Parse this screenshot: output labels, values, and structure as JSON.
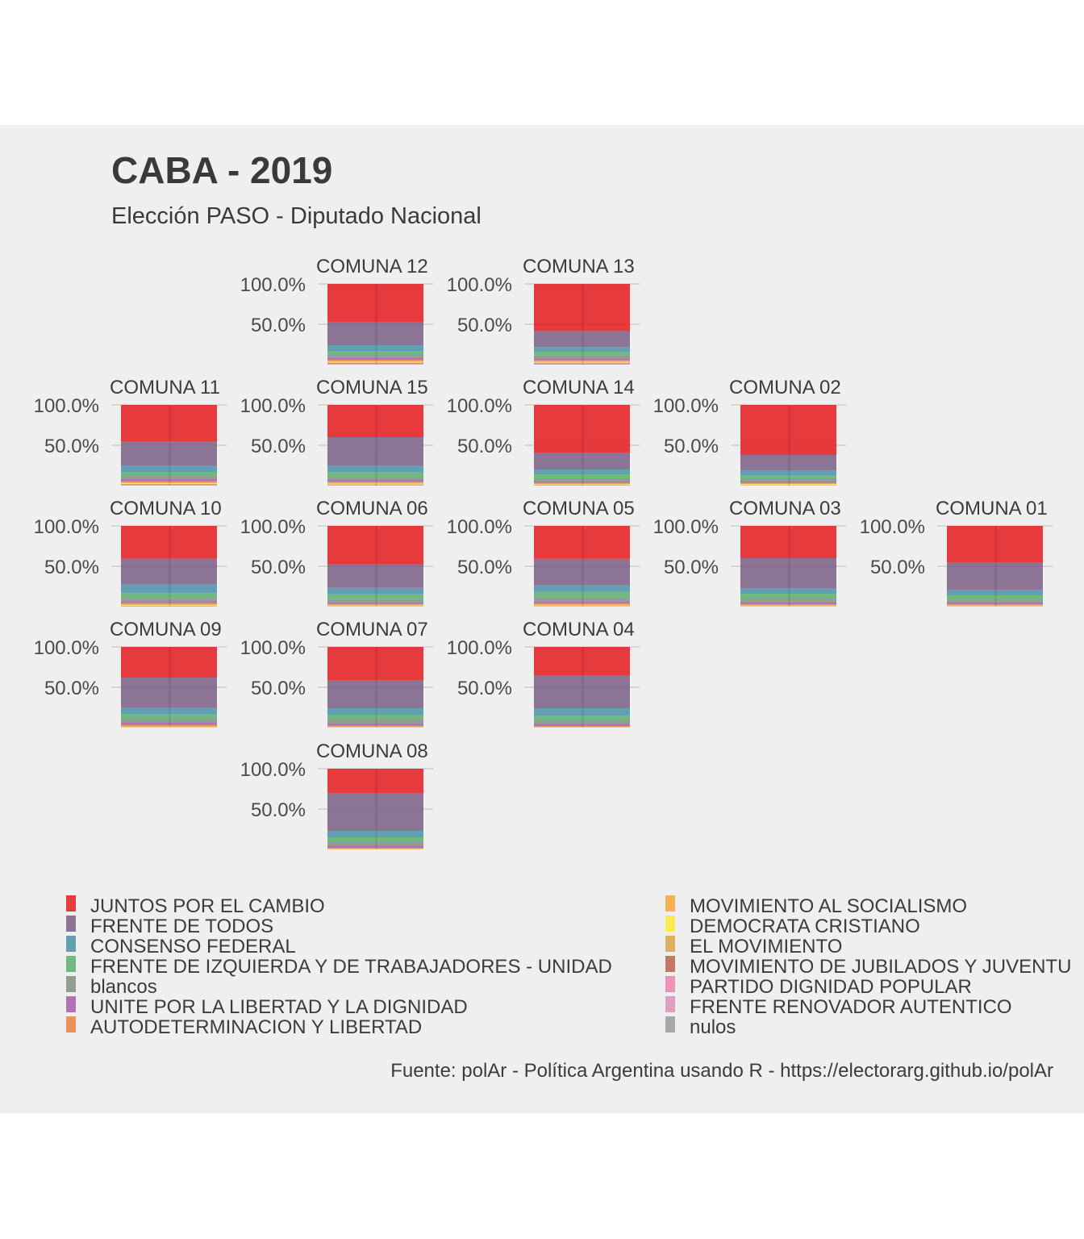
{
  "chart_data": {
    "type": "bar",
    "title": "CABA - 2019",
    "subtitle": "Elección PASO - Diputado Nacional",
    "caption": "Fuente: polAr - Política Argentina usando R - https://electorarg.github.io/polAr",
    "y_ticks": [
      "100.0%",
      "50.0%"
    ],
    "ylim": [
      0,
      1
    ],
    "categories": [
      "JUNTOS POR EL CAMBIO",
      "FRENTE DE TODOS",
      "CONSENSO FEDERAL",
      "FRENTE DE IZQUIERDA Y DE TRABAJADORES - UNIDAD",
      "blancos",
      "UNITE POR LA LIBERTAD Y LA DIGNIDAD",
      "AUTODETERMINACION Y LIBERTAD",
      "MOVIMIENTO AL SOCIALISMO",
      "DEMOCRATA CRISTIANO",
      "EL MOVIMIENTO",
      "MOVIMIENTO DE JUBILADOS Y JUVENTUD",
      "PARTIDO DIGNIDAD POPULAR",
      "FRENTE RENOVADOR AUTENTICO",
      "nulos"
    ],
    "colors": [
      "#e41a1c",
      "#7a5f84",
      "#4a90a8",
      "#59ae6d",
      "#7f8f86",
      "#a55dac",
      "#e8833f",
      "#f8a637",
      "#ffea3a",
      "#d9a744",
      "#b9644a",
      "#ea84ad",
      "#dc90b8",
      "#9a9a9a"
    ],
    "legend_labels": [
      "JUNTOS POR EL CAMBIO",
      "FRENTE DE TODOS",
      "CONSENSO FEDERAL",
      "FRENTE DE IZQUIERDA Y DE TRABAJADORES - UNIDAD",
      "blancos",
      "UNITE POR LA LIBERTAD Y LA DIGNIDAD",
      "AUTODETERMINACION Y LIBERTAD",
      "MOVIMIENTO AL SOCIALISMO",
      "DEMOCRATA CRISTIANO",
      "EL MOVIMIENTO",
      "MOVIMIENTO DE JUBILADOS Y JUVENTU",
      "PARTIDO DIGNIDAD POPULAR",
      "FRENTE RENOVADOR AUTENTICO",
      "nulos"
    ],
    "legend_position": "bottom",
    "grid": true,
    "panels": [
      {
        "name": "COMUNA 12",
        "label": "COMUNA 12",
        "row": 0,
        "col": 1,
        "values": [
          0.47,
          0.29,
          0.07,
          0.05,
          0.04,
          0.02,
          0.015,
          0.01,
          0.01,
          0.005,
          0.005,
          0.004,
          0.003,
          0.008
        ]
      },
      {
        "name": "COMUNA 13",
        "label": "COMUNA 13",
        "row": 0,
        "col": 2,
        "values": [
          0.59,
          0.2,
          0.06,
          0.045,
          0.04,
          0.02,
          0.012,
          0.01,
          0.008,
          0.004,
          0.004,
          0.003,
          0.002,
          0.012
        ]
      },
      {
        "name": "COMUNA 11",
        "label": "COMUNA 11",
        "row": 1,
        "col": 0,
        "values": [
          0.45,
          0.3,
          0.08,
          0.05,
          0.04,
          0.025,
          0.015,
          0.01,
          0.01,
          0.005,
          0.004,
          0.003,
          0.002,
          0.006
        ]
      },
      {
        "name": "COMUNA 15",
        "label": "COMUNA 15",
        "row": 1,
        "col": 1,
        "values": [
          0.4,
          0.35,
          0.08,
          0.06,
          0.04,
          0.02,
          0.015,
          0.01,
          0.008,
          0.005,
          0.004,
          0.003,
          0.002,
          0.003
        ]
      },
      {
        "name": "COMUNA 14",
        "label": "COMUNA 14",
        "row": 1,
        "col": 2,
        "values": [
          0.59,
          0.21,
          0.06,
          0.05,
          0.04,
          0.015,
          0.01,
          0.008,
          0.006,
          0.004,
          0.003,
          0.002,
          0.002,
          0.0
        ]
      },
      {
        "name": "COMUNA 02",
        "label": "COMUNA 02",
        "row": 1,
        "col": 3,
        "values": [
          0.62,
          0.19,
          0.06,
          0.04,
          0.04,
          0.015,
          0.01,
          0.006,
          0.012,
          0.003,
          0.002,
          0.002,
          0.0,
          0.0
        ]
      },
      {
        "name": "COMUNA 10",
        "label": "COMUNA 10",
        "row": 2,
        "col": 0,
        "values": [
          0.41,
          0.32,
          0.11,
          0.06,
          0.04,
          0.025,
          0.015,
          0.01,
          0.008,
          0.004,
          0.003,
          0.002,
          0.002,
          0.0
        ]
      },
      {
        "name": "COMUNA 06",
        "label": "COMUNA 06",
        "row": 2,
        "col": 1,
        "values": [
          0.48,
          0.29,
          0.08,
          0.06,
          0.04,
          0.02,
          0.012,
          0.008,
          0.006,
          0.003,
          0.002,
          0.002,
          0.0,
          0.0
        ]
      },
      {
        "name": "COMUNA 05",
        "label": "COMUNA 05",
        "row": 2,
        "col": 2,
        "values": [
          0.41,
          0.33,
          0.08,
          0.07,
          0.05,
          0.025,
          0.015,
          0.01,
          0.006,
          0.004,
          0.002,
          0.002,
          0.0,
          0.0
        ]
      },
      {
        "name": "COMUNA 03",
        "label": "COMUNA 03",
        "row": 2,
        "col": 3,
        "values": [
          0.4,
          0.37,
          0.07,
          0.06,
          0.05,
          0.02,
          0.012,
          0.008,
          0.004,
          0.002,
          0.002,
          0.002,
          0.0,
          0.0
        ]
      },
      {
        "name": "COMUNA 01",
        "label": "COMUNA 01",
        "row": 2,
        "col": 4,
        "values": [
          0.45,
          0.34,
          0.07,
          0.05,
          0.04,
          0.02,
          0.012,
          0.008,
          0.004,
          0.002,
          0.002,
          0.002,
          0.0,
          0.0
        ]
      },
      {
        "name": "COMUNA 09",
        "label": "COMUNA 09",
        "row": 3,
        "col": 0,
        "values": [
          0.38,
          0.37,
          0.08,
          0.06,
          0.05,
          0.025,
          0.015,
          0.01,
          0.005,
          0.003,
          0.002,
          0.0,
          0.0,
          0.0
        ]
      },
      {
        "name": "COMUNA 07",
        "label": "COMUNA 07",
        "row": 3,
        "col": 1,
        "values": [
          0.41,
          0.35,
          0.08,
          0.06,
          0.05,
          0.025,
          0.012,
          0.008,
          0.003,
          0.002,
          0.0,
          0.0,
          0.0,
          0.0
        ]
      },
      {
        "name": "COMUNA 04",
        "label": "COMUNA 04",
        "row": 3,
        "col": 2,
        "values": [
          0.35,
          0.41,
          0.09,
          0.06,
          0.045,
          0.025,
          0.01,
          0.006,
          0.002,
          0.002,
          0.0,
          0.0,
          0.0,
          0.0
        ]
      },
      {
        "name": "COMUNA 08",
        "label": "COMUNA 08",
        "row": 4,
        "col": 1,
        "values": [
          0.3,
          0.47,
          0.08,
          0.06,
          0.045,
          0.025,
          0.01,
          0.006,
          0.002,
          0.002,
          0.0,
          0.0,
          0.0,
          0.0
        ]
      }
    ]
  }
}
